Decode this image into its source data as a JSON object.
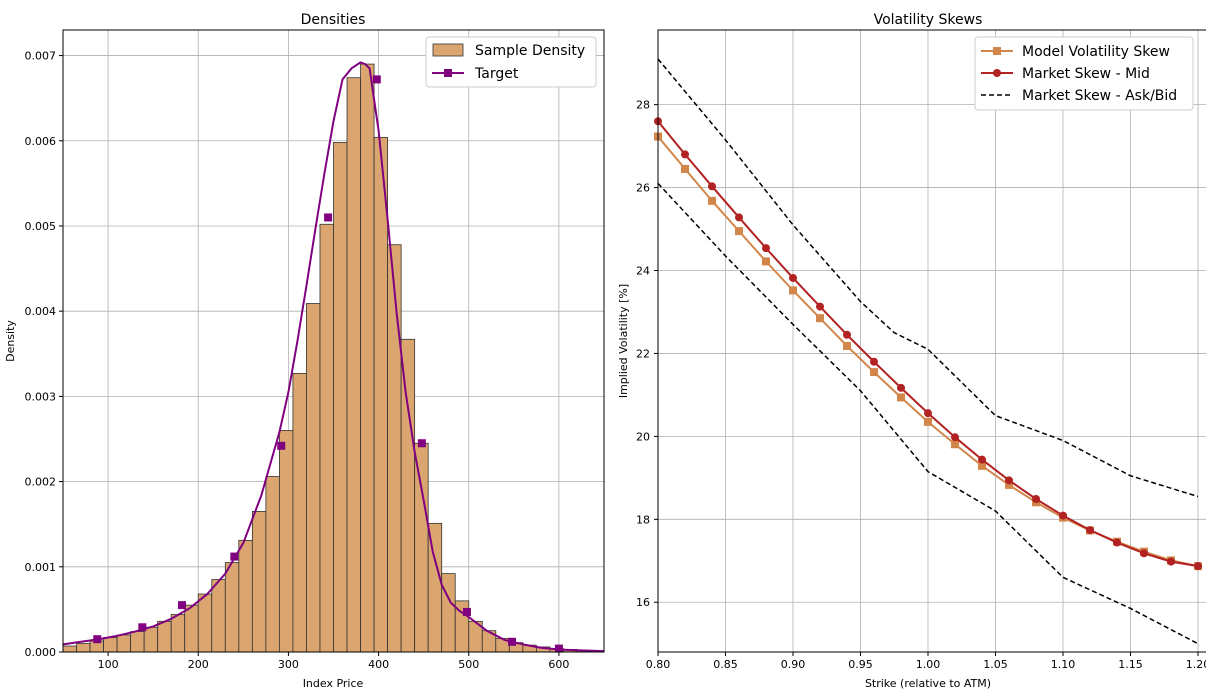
{
  "chart_data": [
    {
      "type": "bar",
      "title": "Densities",
      "xlabel": "Index Price",
      "ylabel": "Density",
      "xlim": [
        50,
        650
      ],
      "ylim": [
        0,
        0.0073
      ],
      "xticks": [
        100,
        200,
        300,
        400,
        500,
        600
      ],
      "yticks": [
        0.0,
        0.001,
        0.002,
        0.003,
        0.004,
        0.005,
        0.006,
        0.007
      ],
      "grid": true,
      "legend_position": "top-right",
      "colors": {
        "bar_fill": "#dba56f",
        "bar_edge": "#333333",
        "target": "#800080"
      },
      "series": [
        {
          "name": "Sample Density",
          "kind": "histogram",
          "bin_edges": [
            50,
            65,
            80,
            95,
            110,
            125,
            140,
            155,
            170,
            185,
            200,
            215,
            230,
            245,
            260,
            275,
            290,
            305,
            320,
            335,
            350,
            365,
            380,
            395,
            410,
            425,
            440,
            455,
            470,
            485,
            500,
            515,
            530,
            545,
            560,
            575,
            590,
            605,
            620,
            635,
            650
          ],
          "values": [
            7e-05,
            0.0001,
            0.00013,
            0.00017,
            0.0002,
            0.00024,
            0.00029,
            0.00036,
            0.00044,
            0.00055,
            0.00068,
            0.00085,
            0.00105,
            0.00131,
            0.00165,
            0.00206,
            0.0026,
            0.00327,
            0.00409,
            0.00502,
            0.00598,
            0.00674,
            0.0069,
            0.00604,
            0.00478,
            0.00367,
            0.00245,
            0.00151,
            0.00092,
            0.0006,
            0.00036,
            0.00025,
            0.00016,
            0.00011,
            8e-05,
            6e-05,
            4e-05,
            3e-05,
            2e-05,
            1e-05
          ]
        },
        {
          "name": "Target",
          "kind": "line",
          "x": [
            50,
            70,
            90,
            110,
            130,
            150,
            170,
            190,
            210,
            230,
            250,
            270,
            290,
            300,
            310,
            320,
            330,
            340,
            350,
            360,
            370,
            380,
            385,
            390,
            400,
            410,
            420,
            430,
            440,
            450,
            460,
            470,
            480,
            490,
            500,
            520,
            540,
            560,
            580,
            600,
            620,
            650
          ],
          "y": [
            9e-05,
            0.00012,
            0.00015,
            0.00019,
            0.00024,
            0.0003,
            0.00039,
            0.00051,
            0.00068,
            0.00092,
            0.00128,
            0.00184,
            0.00258,
            0.00305,
            0.00365,
            0.0043,
            0.00497,
            0.00562,
            0.00623,
            0.00672,
            0.00685,
            0.00692,
            0.0069,
            0.00685,
            0.00612,
            0.00508,
            0.00398,
            0.00305,
            0.00235,
            0.00178,
            0.00118,
            0.00079,
            0.00058,
            0.00048,
            0.00041,
            0.00025,
            0.00014,
            9e-05,
            5e-05,
            3e-05,
            2e-05,
            1e-05
          ],
          "markers_x": [
            88,
            138,
            182,
            240,
            292,
            344,
            398,
            448,
            498,
            548,
            600
          ],
          "markers_y": [
            0.00015,
            0.00029,
            0.00055,
            0.00112,
            0.00242,
            0.0051,
            0.00672,
            0.00245,
            0.00047,
            0.00012,
            4e-05
          ]
        }
      ]
    },
    {
      "type": "line",
      "title": "Volatility Skews",
      "xlabel": "Strike (relative to ATM)",
      "ylabel": "Implied Volatility [%]",
      "xlim": [
        0.8,
        1.2
      ],
      "ylim": [
        14.8,
        29.8
      ],
      "xticks": [
        0.8,
        0.85,
        0.9,
        0.95,
        1.0,
        1.05,
        1.1,
        1.15,
        1.2
      ],
      "xtick_labels": [
        "0.80",
        "0.85",
        "0.90",
        "0.95",
        "1.00",
        "1.05",
        "1.10",
        "1.15",
        "1.20"
      ],
      "yticks": [
        16,
        18,
        20,
        22,
        24,
        26,
        28
      ],
      "grid": true,
      "legend_position": "top-right",
      "series": [
        {
          "name": "Model Volatility Skew",
          "color": "#d2864a",
          "marker": "square",
          "x": [
            0.8,
            0.82,
            0.84,
            0.86,
            0.88,
            0.9,
            0.92,
            0.94,
            0.96,
            0.98,
            1.0,
            1.02,
            1.04,
            1.06,
            1.08,
            1.1,
            1.12,
            1.14,
            1.16,
            1.18,
            1.2
          ],
          "y": [
            27.23,
            26.45,
            25.68,
            24.95,
            24.22,
            23.52,
            22.85,
            22.18,
            21.55,
            20.94,
            20.35,
            19.81,
            19.29,
            18.83,
            18.41,
            18.04,
            17.73,
            17.46,
            17.22,
            17.01,
            16.87
          ]
        },
        {
          "name": "Market Skew - Mid",
          "color": "#b22222",
          "marker": "circle",
          "x": [
            0.8,
            0.82,
            0.84,
            0.86,
            0.88,
            0.9,
            0.92,
            0.94,
            0.96,
            0.98,
            1.0,
            1.02,
            1.04,
            1.06,
            1.08,
            1.1,
            1.12,
            1.14,
            1.16,
            1.18,
            1.2
          ],
          "y": [
            27.6,
            26.8,
            26.03,
            25.28,
            24.54,
            23.82,
            23.13,
            22.45,
            21.8,
            21.17,
            20.56,
            19.98,
            19.44,
            18.94,
            18.49,
            18.09,
            17.74,
            17.44,
            17.18,
            16.98,
            16.87
          ]
        },
        {
          "name": "Market Skew - Ask/Bid",
          "color": "#000000",
          "style": "dashed",
          "x": [
            0.8,
            0.85,
            0.9,
            0.95,
            0.975,
            1.0,
            1.05,
            1.1,
            1.15,
            1.2
          ],
          "y": [
            29.1,
            27.15,
            25.1,
            23.25,
            22.5,
            22.1,
            20.5,
            19.9,
            19.05,
            18.55
          ],
          "lower_x": [
            0.8,
            0.85,
            0.9,
            0.95,
            1.0,
            1.05,
            1.1,
            1.15,
            1.2
          ],
          "lower_y": [
            26.1,
            24.35,
            22.7,
            21.1,
            19.15,
            18.2,
            16.6,
            15.85,
            15.0
          ]
        }
      ]
    }
  ]
}
